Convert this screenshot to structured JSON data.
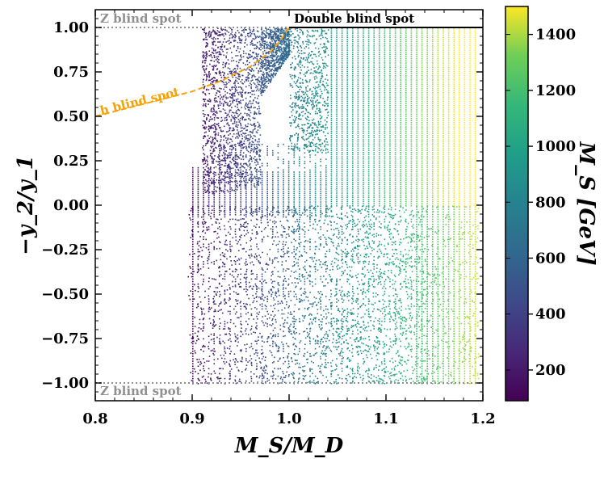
{
  "chart_data": {
    "type": "scatter",
    "xlabel": "M_S/M_D",
    "ylabel": "−y_2/y_1",
    "xlim": [
      0.8,
      1.2
    ],
    "ylim": [
      -1.1,
      1.1
    ],
    "xticks": [
      0.8,
      0.9,
      1.0,
      1.1,
      1.2
    ],
    "xtick_labels": [
      "0.8",
      "0.9",
      "1.0",
      "1.1",
      "1.2"
    ],
    "yticks": [
      1.0,
      0.75,
      0.5,
      0.25,
      0.0,
      -0.25,
      -0.5,
      -0.75,
      -1.0
    ],
    "ytick_labels": [
      "1.00",
      "0.75",
      "0.50",
      "0.25",
      "0.00",
      "−0.25",
      "−0.50",
      "−0.75",
      "−1.00"
    ],
    "grid": false,
    "colorbar": {
      "label": "M_S [GeV]",
      "colormap": "viridis",
      "range": [
        90,
        1500
      ],
      "ticks": [
        200,
        400,
        600,
        800,
        1000,
        1200,
        1400
      ],
      "tick_labels": [
        "200",
        "400",
        "600",
        "800",
        "1000",
        "1200",
        "1400"
      ]
    },
    "annotations": [
      {
        "text": "Z blind spot",
        "x": 0.805,
        "y": 1.05,
        "color": "#909090"
      },
      {
        "text": "Z blind spot",
        "x": 0.805,
        "y": -1.05,
        "color": "#909090"
      },
      {
        "text": "Double blind spot",
        "x": 1.005,
        "y": 1.05,
        "color": "#000000"
      },
      {
        "text": "h blind spot",
        "x": 0.805,
        "y": 0.53,
        "color": "#f5a20a"
      }
    ],
    "reference_lines": [
      {
        "name": "Z blind spot (top)",
        "y": 1.0,
        "x": [
          0.8,
          1.0
        ],
        "style": "dotted",
        "color": "#909090"
      },
      {
        "name": "Z blind spot (bottom)",
        "y": -1.0,
        "x": [
          0.8,
          1.2
        ],
        "style": "dotted",
        "color": "#909090"
      },
      {
        "name": "Double blind spot",
        "y": 1.0,
        "x": [
          1.0,
          1.2
        ],
        "style": "solid",
        "color": "#000000"
      },
      {
        "name": "h blind spot",
        "style": "dashed",
        "color": "#f5a20a",
        "points": [
          [
            0.8,
            0.5
          ],
          [
            0.85,
            0.57
          ],
          [
            0.9,
            0.64
          ],
          [
            0.93,
            0.7
          ],
          [
            0.96,
            0.78
          ],
          [
            0.98,
            0.86
          ],
          [
            0.99,
            0.92
          ],
          [
            1.0,
            1.0
          ]
        ]
      }
    ],
    "scatter_regions": [
      {
        "region": "upper-left branch",
        "x": [
          0.91,
          1.0
        ],
        "y": [
          0.05,
          1.0
        ],
        "color_range": [
          90,
          700
        ]
      },
      {
        "region": "upper-middle",
        "x": [
          1.0,
          1.04
        ],
        "y": [
          0.3,
          1.0
        ],
        "color_range": [
          700,
          950
        ]
      },
      {
        "region": "upper-right columns",
        "x": [
          1.04,
          1.195
        ],
        "y": [
          0.0,
          1.0
        ],
        "color_range": [
          800,
          1500
        ]
      },
      {
        "region": "lower band",
        "x": [
          0.895,
          1.2
        ],
        "y": [
          -1.0,
          0.0
        ],
        "color_range": [
          90,
          1500
        ]
      }
    ]
  }
}
